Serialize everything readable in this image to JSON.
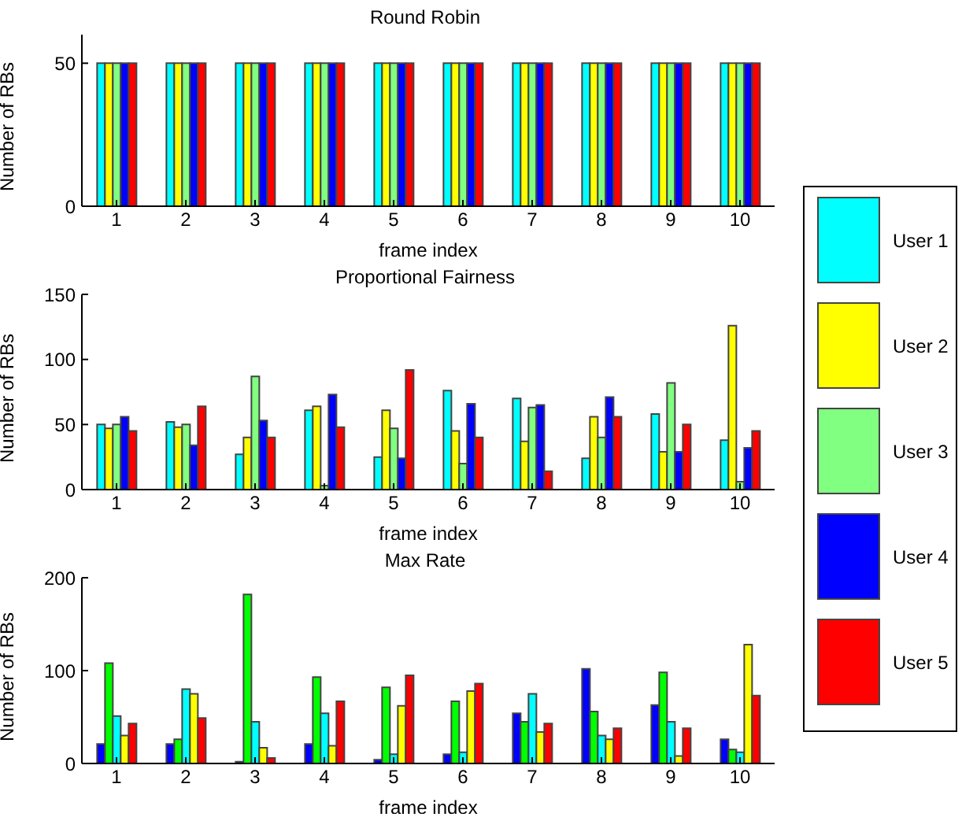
{
  "chart_data": [
    {
      "type": "bar",
      "title": "Round Robin",
      "xlabel": "frame index",
      "ylabel": "Number of RBs",
      "categories": [
        "1",
        "2",
        "3",
        "4",
        "5",
        "6",
        "7",
        "8",
        "9",
        "10"
      ],
      "ylim": [
        0,
        60
      ],
      "yticks": [
        0,
        50
      ],
      "legend": "right",
      "series": [
        {
          "name": "User 1",
          "color": "#00ffff",
          "values": [
            50,
            50,
            50,
            50,
            50,
            50,
            50,
            50,
            50,
            50
          ]
        },
        {
          "name": "User 2",
          "color": "#ffff00",
          "values": [
            50,
            50,
            50,
            50,
            50,
            50,
            50,
            50,
            50,
            50
          ]
        },
        {
          "name": "User 3",
          "color": "#80ff80",
          "values": [
            50,
            50,
            50,
            50,
            50,
            50,
            50,
            50,
            50,
            50
          ]
        },
        {
          "name": "User 4",
          "color": "#0000ff",
          "values": [
            50,
            50,
            50,
            50,
            50,
            50,
            50,
            50,
            50,
            50
          ]
        },
        {
          "name": "User 5",
          "color": "#ff0000",
          "values": [
            50,
            50,
            50,
            50,
            50,
            50,
            50,
            50,
            50,
            50
          ]
        }
      ]
    },
    {
      "type": "bar",
      "title": "Proportional Fairness",
      "xlabel": "frame index",
      "ylabel": "Number of RBs",
      "categories": [
        "1",
        "2",
        "3",
        "4",
        "5",
        "6",
        "7",
        "8",
        "9",
        "10"
      ],
      "ylim": [
        0,
        150
      ],
      "yticks": [
        0,
        50,
        100,
        150
      ],
      "series": [
        {
          "color": "#00ffff",
          "values": [
            50,
            52,
            27,
            61,
            25,
            76,
            70,
            24,
            58,
            38
          ]
        },
        {
          "color": "#ffff00",
          "values": [
            47,
            48,
            40,
            64,
            61,
            45,
            37,
            56,
            29,
            126
          ]
        },
        {
          "color": "#80ff80",
          "values": [
            50,
            50,
            87,
            3,
            47,
            20,
            63,
            40,
            82,
            6
          ]
        },
        {
          "color": "#0000ff",
          "values": [
            56,
            34,
            53,
            73,
            24,
            66,
            65,
            71,
            29,
            32
          ]
        },
        {
          "color": "#ff0000",
          "values": [
            45,
            64,
            40,
            48,
            92,
            40,
            14,
            56,
            50,
            45
          ]
        }
      ]
    },
    {
      "type": "bar",
      "title": "Max Rate",
      "xlabel": "frame index",
      "ylabel": "Number of RBs",
      "categories": [
        "1",
        "2",
        "3",
        "4",
        "5",
        "6",
        "7",
        "8",
        "9",
        "10"
      ],
      "ylim": [
        0,
        200
      ],
      "yticks": [
        0,
        100,
        200
      ],
      "series": [
        {
          "color": "#0000ff",
          "values": [
            21,
            21,
            2,
            21,
            4,
            10,
            54,
            102,
            63,
            26
          ]
        },
        {
          "color": "#00ff00",
          "values": [
            108,
            26,
            182,
            93,
            82,
            67,
            45,
            56,
            98,
            15
          ]
        },
        {
          "color": "#00ffff",
          "values": [
            51,
            80,
            45,
            54,
            10,
            12,
            75,
            30,
            45,
            12
          ]
        },
        {
          "color": "#ffff00",
          "values": [
            30,
            75,
            17,
            19,
            62,
            78,
            34,
            26,
            8,
            128
          ]
        },
        {
          "color": "#ff0000",
          "values": [
            43,
            49,
            6,
            67,
            95,
            86,
            43,
            38,
            38,
            73
          ]
        }
      ]
    }
  ]
}
